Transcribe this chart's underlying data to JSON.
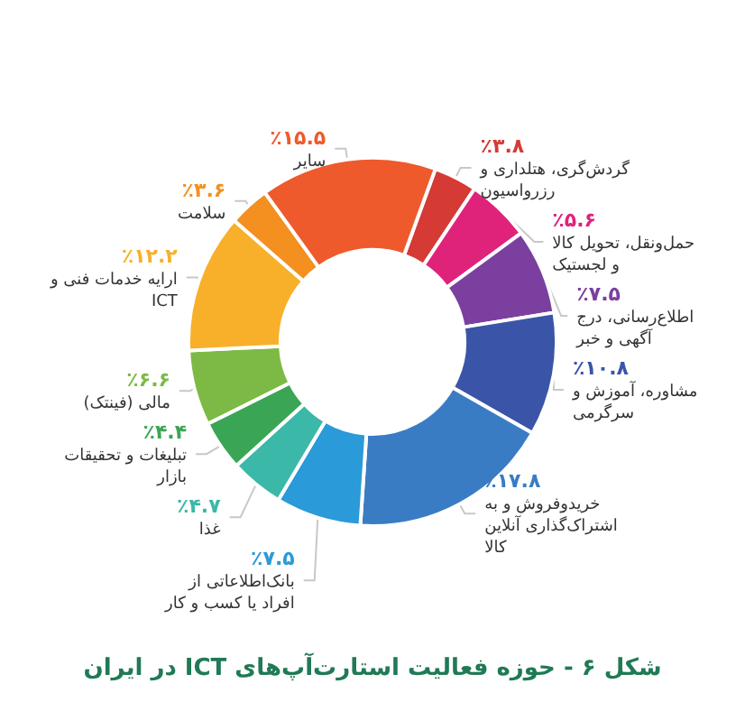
{
  "chart_data": {
    "type": "donut",
    "title": "شکل ۶ - حوزه فعالیت استارت‌آپ‌های ICT در ایران",
    "categories": [
      "گردش‌گری، هتلداری و رزرو‌اسیون",
      "حمل‌ونقل، تحویل کالا و لجستیک",
      "اطلاع‌رسانی، درج آگهی و خبر",
      "مشاوره، آموزش و سرگرمی",
      "خریدوفروش و به اشتراک‌گذاری آنلاین کالا",
      "بانک‌اطلاعاتی از افراد یا کسب و کار",
      "غذا",
      "تبلیغات و تحقیقات بازار",
      "مالی (فینتک)",
      "ارایه خدمات فنی و ICT",
      "سلامت",
      "سایر"
    ],
    "values": [
      3.8,
      5.6,
      7.5,
      10.8,
      17.8,
      7.5,
      4.7,
      4.4,
      6.6,
      12.2,
      3.6,
      15.5
    ],
    "value_labels": [
      "٪۳.۸",
      "٪۵.۶",
      "٪۷.۵",
      "٪۱۰.۸",
      "٪۱۷.۸",
      "٪۷.۵",
      "٪۴.۷",
      "٪۴.۴",
      "٪۶.۶",
      "٪۱۲.۲",
      "٪۳.۶",
      "٪۱۵.۵"
    ],
    "colors": [
      "#d63a35",
      "#e0237a",
      "#7b3fa0",
      "#3a55a8",
      "#3a7cc4",
      "#2a9ad8",
      "#3bb8a8",
      "#3aa655",
      "#7dba45",
      "#f8b02a",
      "#f39020",
      "#ee5a2c"
    ],
    "legend": false
  }
}
